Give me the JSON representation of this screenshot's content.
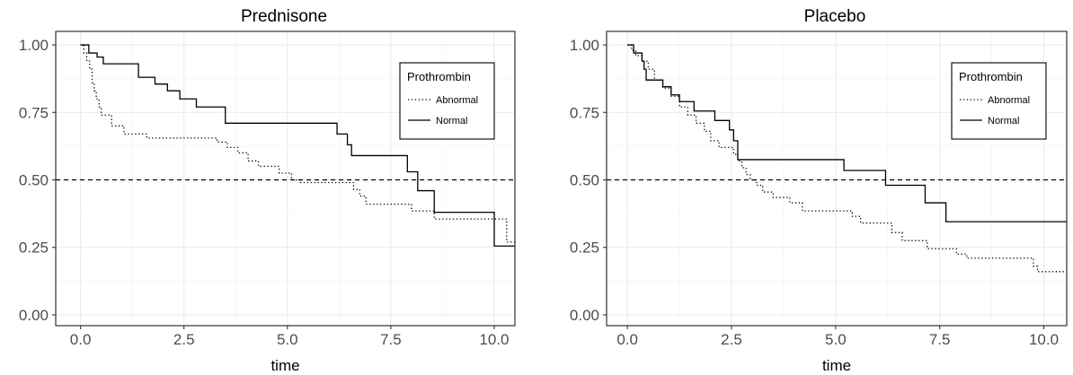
{
  "chart_data": [
    {
      "type": "line",
      "title": "Prednisone",
      "xlabel": "time",
      "ylabel": "",
      "xlim": [
        -0.6,
        10.5
      ],
      "ylim": [
        -0.04,
        1.05
      ],
      "x_ticks": [
        "0.0",
        "2.5",
        "5.0",
        "7.5",
        "10.0"
      ],
      "x_tick_values": [
        0,
        2.5,
        5,
        7.5,
        10
      ],
      "y_ticks": [
        "0.00",
        "0.25",
        "0.50",
        "0.75",
        "1.00"
      ],
      "y_tick_values": [
        0,
        0.25,
        0.5,
        0.75,
        1
      ],
      "grid": true,
      "reference_line": 0.5,
      "legend": {
        "title": "Prothrombin",
        "position": "top-right"
      },
      "series": [
        {
          "name": "Abnormal",
          "style": "dotted",
          "points": [
            [
              0,
              1
            ],
            [
              0.08,
              0.97
            ],
            [
              0.15,
              0.94
            ],
            [
              0.22,
              0.91
            ],
            [
              0.28,
              0.86
            ],
            [
              0.33,
              0.83
            ],
            [
              0.38,
              0.8
            ],
            [
              0.45,
              0.77
            ],
            [
              0.5,
              0.74
            ],
            [
              0.75,
              0.7
            ],
            [
              1.05,
              0.67
            ],
            [
              1.6,
              0.655
            ],
            [
              3.3,
              0.64
            ],
            [
              3.55,
              0.62
            ],
            [
              3.8,
              0.6
            ],
            [
              4.05,
              0.57
            ],
            [
              4.3,
              0.55
            ],
            [
              4.8,
              0.525
            ],
            [
              5.1,
              0.5
            ],
            [
              5.3,
              0.49
            ],
            [
              6.6,
              0.465
            ],
            [
              6.75,
              0.44
            ],
            [
              6.9,
              0.41
            ],
            [
              8.0,
              0.385
            ],
            [
              8.55,
              0.355
            ],
            [
              10.3,
              0.27
            ],
            [
              10.5,
              0.27
            ]
          ]
        },
        {
          "name": "Normal",
          "style": "solid",
          "points": [
            [
              0,
              1
            ],
            [
              0.2,
              0.97
            ],
            [
              0.4,
              0.955
            ],
            [
              0.55,
              0.93
            ],
            [
              1.4,
              0.88
            ],
            [
              1.8,
              0.855
            ],
            [
              2.1,
              0.83
            ],
            [
              2.4,
              0.8
            ],
            [
              2.8,
              0.77
            ],
            [
              3.5,
              0.71
            ],
            [
              6.2,
              0.67
            ],
            [
              6.45,
              0.63
            ],
            [
              6.55,
              0.59
            ],
            [
              7.9,
              0.53
            ],
            [
              8.15,
              0.46
            ],
            [
              8.55,
              0.38
            ],
            [
              10.0,
              0.255
            ],
            [
              10.5,
              0.255
            ]
          ]
        }
      ]
    },
    {
      "type": "line",
      "title": "Placebo",
      "xlabel": "time",
      "ylabel": "",
      "xlim": [
        -0.5,
        10.55
      ],
      "ylim": [
        -0.04,
        1.05
      ],
      "x_ticks": [
        "0.0",
        "2.5",
        "5.0",
        "7.5",
        "10.0"
      ],
      "x_tick_values": [
        0,
        2.5,
        5,
        7.5,
        10
      ],
      "y_ticks": [
        "0.00",
        "0.25",
        "0.50",
        "0.75",
        "1.00"
      ],
      "y_tick_values": [
        0,
        0.25,
        0.5,
        0.75,
        1
      ],
      "grid": true,
      "reference_line": 0.5,
      "legend": {
        "title": "Prothrombin",
        "position": "top-right"
      },
      "series": [
        {
          "name": "Abnormal",
          "style": "dotted",
          "points": [
            [
              0,
              1
            ],
            [
              0.1,
              0.98
            ],
            [
              0.2,
              0.96
            ],
            [
              0.35,
              0.94
            ],
            [
              0.5,
              0.91
            ],
            [
              0.65,
              0.87
            ],
            [
              0.85,
              0.84
            ],
            [
              1.05,
              0.81
            ],
            [
              1.25,
              0.77
            ],
            [
              1.45,
              0.74
            ],
            [
              1.65,
              0.71
            ],
            [
              1.85,
              0.68
            ],
            [
              2.0,
              0.645
            ],
            [
              2.2,
              0.62
            ],
            [
              2.55,
              0.595
            ],
            [
              2.65,
              0.57
            ],
            [
              2.75,
              0.545
            ],
            [
              2.85,
              0.52
            ],
            [
              2.95,
              0.5
            ],
            [
              3.1,
              0.48
            ],
            [
              3.25,
              0.455
            ],
            [
              3.5,
              0.435
            ],
            [
              3.9,
              0.415
            ],
            [
              4.2,
              0.385
            ],
            [
              5.4,
              0.365
            ],
            [
              5.6,
              0.34
            ],
            [
              6.35,
              0.305
            ],
            [
              6.6,
              0.275
            ],
            [
              7.2,
              0.245
            ],
            [
              7.9,
              0.225
            ],
            [
              8.15,
              0.21
            ],
            [
              9.75,
              0.18
            ],
            [
              9.85,
              0.16
            ],
            [
              10.55,
              0.16
            ]
          ]
        },
        {
          "name": "Normal",
          "style": "solid",
          "points": [
            [
              0,
              1
            ],
            [
              0.15,
              0.97
            ],
            [
              0.35,
              0.94
            ],
            [
              0.4,
              0.91
            ],
            [
              0.45,
              0.87
            ],
            [
              0.85,
              0.845
            ],
            [
              1.05,
              0.815
            ],
            [
              1.25,
              0.79
            ],
            [
              1.6,
              0.755
            ],
            [
              2.1,
              0.72
            ],
            [
              2.45,
              0.685
            ],
            [
              2.55,
              0.645
            ],
            [
              2.65,
              0.575
            ],
            [
              5.2,
              0.535
            ],
            [
              6.2,
              0.48
            ],
            [
              7.15,
              0.415
            ],
            [
              7.65,
              0.345
            ],
            [
              10.55,
              0.345
            ]
          ]
        }
      ]
    }
  ]
}
